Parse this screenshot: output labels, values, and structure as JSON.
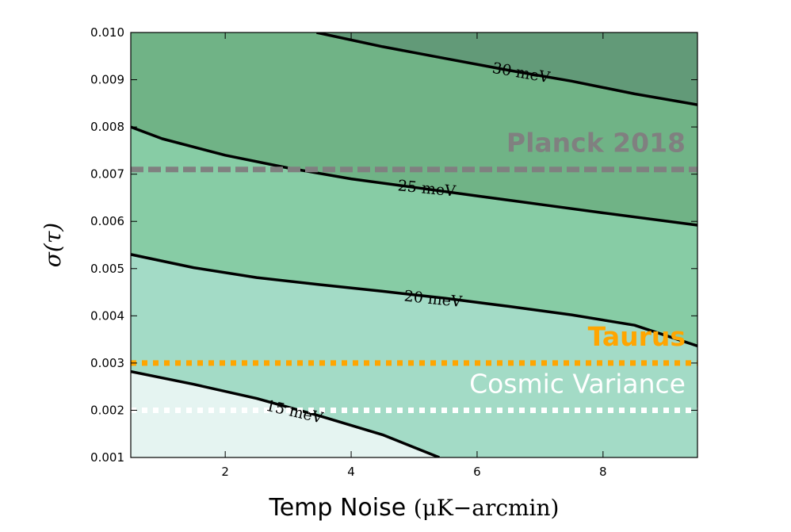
{
  "chart_data": {
    "type": "contour",
    "xlabel": "Temp Noise ",
    "xlabel_math": "(μK−arcmin)",
    "ylabel": "σ(τ)",
    "xlim": [
      0.5,
      9.5
    ],
    "ylim": [
      0.001,
      0.01
    ],
    "x_ticks": [
      2,
      4,
      6,
      8
    ],
    "x_tick_labels": [
      "2",
      "4",
      "6",
      "8"
    ],
    "y_ticks": [
      0.001,
      0.002,
      0.003,
      0.004,
      0.005,
      0.006,
      0.007,
      0.008,
      0.009,
      0.01
    ],
    "y_tick_labels": [
      "0.001",
      "0.002",
      "0.003",
      "0.004",
      "0.005",
      "0.006",
      "0.007",
      "0.008",
      "0.009",
      "0.010"
    ],
    "contours": [
      {
        "label": "15 meV",
        "points": [
          [
            0.5,
            0.00282
          ],
          [
            1.5,
            0.00255
          ],
          [
            2.5,
            0.00225
          ],
          [
            3.5,
            0.00188
          ],
          [
            4.5,
            0.00148
          ],
          [
            5.4,
            0.001
          ]
        ],
        "label_x": 3.1,
        "label_y": 0.00198,
        "label_angle": 13
      },
      {
        "label": "20 meV",
        "points": [
          [
            0.5,
            0.0053
          ],
          [
            1.5,
            0.00502
          ],
          [
            2.5,
            0.00481
          ],
          [
            3.5,
            0.00466
          ],
          [
            4.5,
            0.00452
          ],
          [
            5.5,
            0.00437
          ],
          [
            6.5,
            0.0042
          ],
          [
            7.5,
            0.00402
          ],
          [
            8.5,
            0.0038
          ],
          [
            9.5,
            0.00336
          ]
        ],
        "label_x": 5.3,
        "label_y": 0.00437,
        "label_angle": 6
      },
      {
        "label": "25 meV",
        "points": [
          [
            0.5,
            0.008
          ],
          [
            1.0,
            0.00775
          ],
          [
            2.0,
            0.0074
          ],
          [
            3.0,
            0.00713
          ],
          [
            4.0,
            0.0069
          ],
          [
            5.0,
            0.00672
          ],
          [
            6.0,
            0.00654
          ],
          [
            7.0,
            0.00636
          ],
          [
            8.0,
            0.00618
          ],
          [
            9.5,
            0.00592
          ]
        ],
        "label_x": 5.2,
        "label_y": 0.00671,
        "label_angle": 6
      },
      {
        "label": "30 meV",
        "points": [
          [
            3.45,
            0.01
          ],
          [
            4.5,
            0.0097
          ],
          [
            5.5,
            0.00945
          ],
          [
            6.5,
            0.0092
          ],
          [
            7.5,
            0.00897
          ],
          [
            8.5,
            0.0087
          ],
          [
            9.5,
            0.00847
          ]
        ],
        "label_x": 6.7,
        "label_y": 0.00916,
        "label_angle": 10
      }
    ],
    "fill_levels": [
      {
        "range": "below 15 meV",
        "color": "#e5f4f1"
      },
      {
        "range": "15-20 meV",
        "color": "#a3dbc6"
      },
      {
        "range": "20-25 meV",
        "color": "#87cca5"
      },
      {
        "range": "25-30 meV",
        "color": "#70b386"
      },
      {
        "range": "above 30 meV",
        "color": "#629a78"
      }
    ],
    "reference_lines": [
      {
        "name": "Planck 2018",
        "y": 0.0071,
        "style": "dashed",
        "color": "#808080",
        "text_color": "#808080"
      },
      {
        "name": "Taurus",
        "y": 0.003,
        "style": "dotted",
        "color": "#ffa500",
        "text_color": "#ffa500"
      },
      {
        "name": "Cosmic Variance",
        "y": 0.002,
        "style": "dotted",
        "color": "#ffffff",
        "text_color": "#ffffff"
      }
    ],
    "grid": false
  }
}
